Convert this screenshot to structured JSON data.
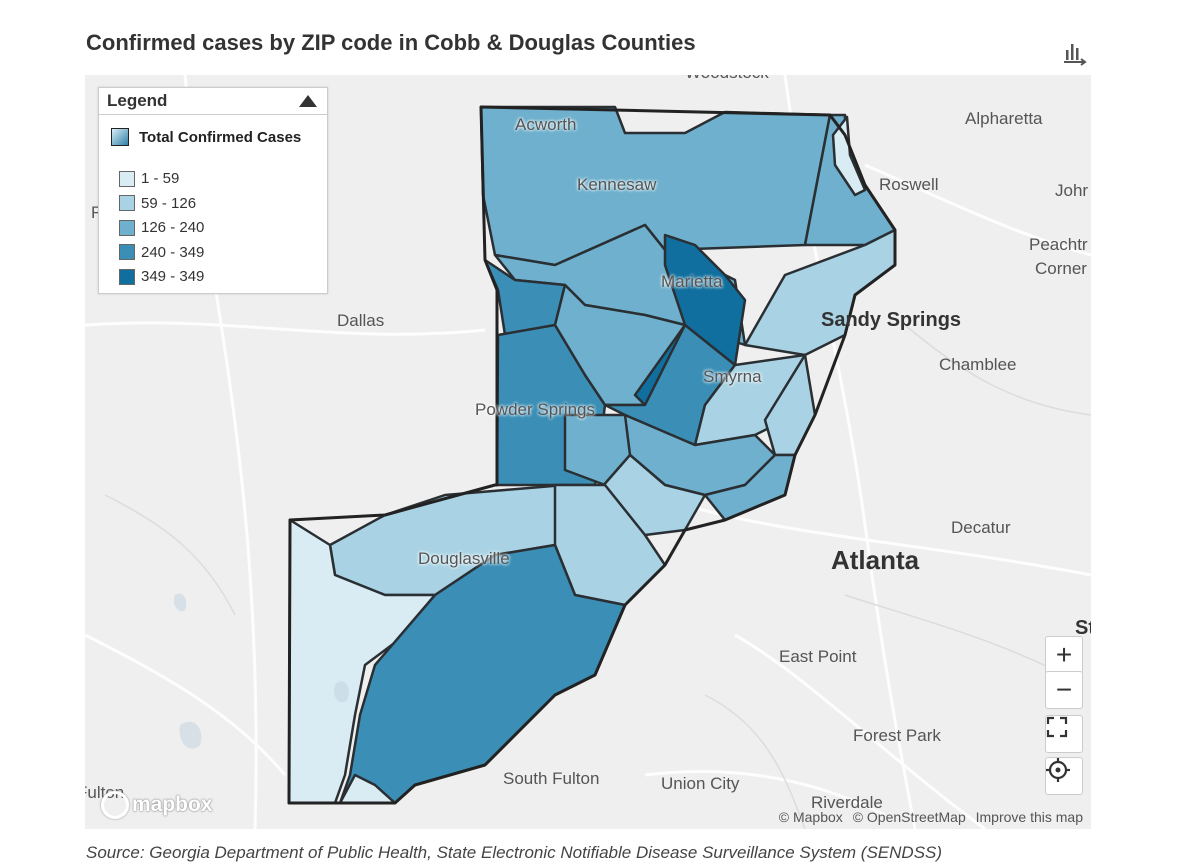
{
  "title": "Confirmed cases by ZIP code in Cobb & Douglas Counties",
  "source": "Source: Georgia Department of Public Health, State Electronic Notifiable Disease Surveillance System (SENDSS)",
  "icons": {
    "data_view": "bar-chart-arrow-icon",
    "zoom_in": "plus-icon",
    "zoom_out": "minus-icon",
    "fullscreen": "fullscreen-icon",
    "locate": "crosshair-icon"
  },
  "controls": {
    "zoom_in": "+",
    "zoom_out": "−"
  },
  "legend": {
    "title": "Legend",
    "subtitle": "Total Confirmed Cases",
    "classes": [
      {
        "label": "1 - 59",
        "color": "#d9ecf4"
      },
      {
        "label": "59 - 126",
        "color": "#a9d3e4"
      },
      {
        "label": "126 - 240",
        "color": "#6eb0cd"
      },
      {
        "label": "240 - 349",
        "color": "#3b8fb7"
      },
      {
        "label": "349 - 349",
        "color": "#106f9e"
      }
    ]
  },
  "places": {
    "woodstock": "Woodstock",
    "alpharetta": "Alpharetta",
    "acworth": "Acworth",
    "kennesaw": "Kennesaw",
    "roswell": "Roswell",
    "johns": "Johr",
    "peachtree_1": "Peachtr",
    "peachtree_2": "Corner",
    "marietta": "Marietta",
    "dallas": "Dallas",
    "sandy_springs": "Sandy Springs",
    "chamblee": "Chamblee",
    "smyrna": "Smyrna",
    "powder_springs": "Powder Springs",
    "decatur": "Decatur",
    "douglasville": "Douglasville",
    "atlanta": "Atlanta",
    "st": "St",
    "east_point": "East Point",
    "forest_park": "Forest Park",
    "south_fulton": "South Fulton",
    "union_city": "Union City",
    "riverdale": "Riverdale",
    "fulton": "Fulton",
    "left_edge": "F"
  },
  "attribution": {
    "mapbox": "© Mapbox",
    "osm": "© OpenStreetMap",
    "improve": "Improve this map"
  },
  "logo": "mapbox"
}
